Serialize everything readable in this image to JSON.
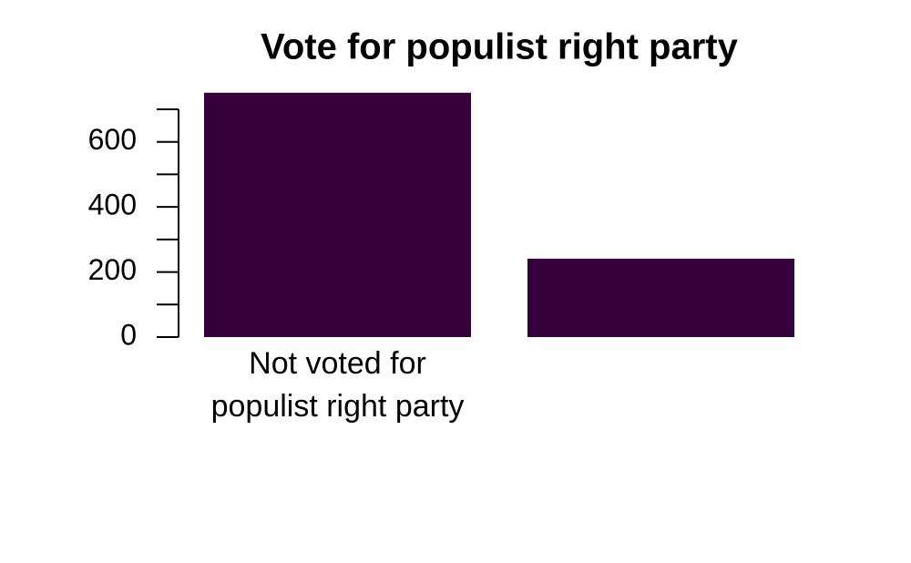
{
  "chart_data": {
    "type": "bar",
    "title": "Vote for populist right party",
    "categories": [
      "Not voted for\npopulist right party",
      null
    ],
    "values": [
      751,
      241
    ],
    "color": "#35003c",
    "ylim": [
      0,
      700
    ],
    "yticks": [
      0,
      200,
      400,
      600
    ],
    "yminor_ticks": [
      100,
      300,
      500,
      700
    ]
  }
}
